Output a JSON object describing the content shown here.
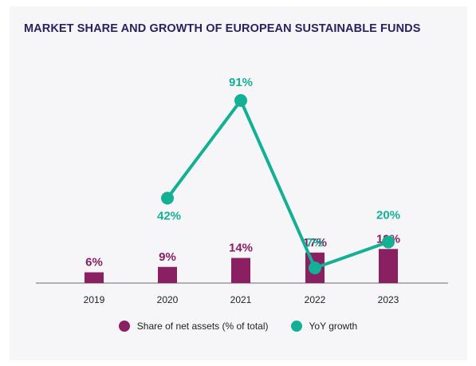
{
  "chart_data": {
    "type": "bar",
    "title": "MARKET SHARE AND GROWTH OF EUROPEAN SUSTAINABLE FUNDS",
    "categories": [
      "2019",
      "2020",
      "2021",
      "2022",
      "2023"
    ],
    "series": [
      {
        "name": "Share of net assets (% of total)",
        "type": "bar",
        "color": "#8a1f62",
        "values": [
          6,
          9,
          14,
          17,
          19
        ],
        "labels": [
          "6%",
          "9%",
          "14%",
          "17%",
          "19%"
        ]
      },
      {
        "name": "YoY growth",
        "type": "line",
        "color": "#14b096",
        "values": [
          null,
          42,
          91,
          7,
          20
        ],
        "labels": [
          "",
          "42%",
          "91%",
          "7%",
          "20%"
        ]
      }
    ],
    "grid": false,
    "legend_position": "bottom"
  }
}
